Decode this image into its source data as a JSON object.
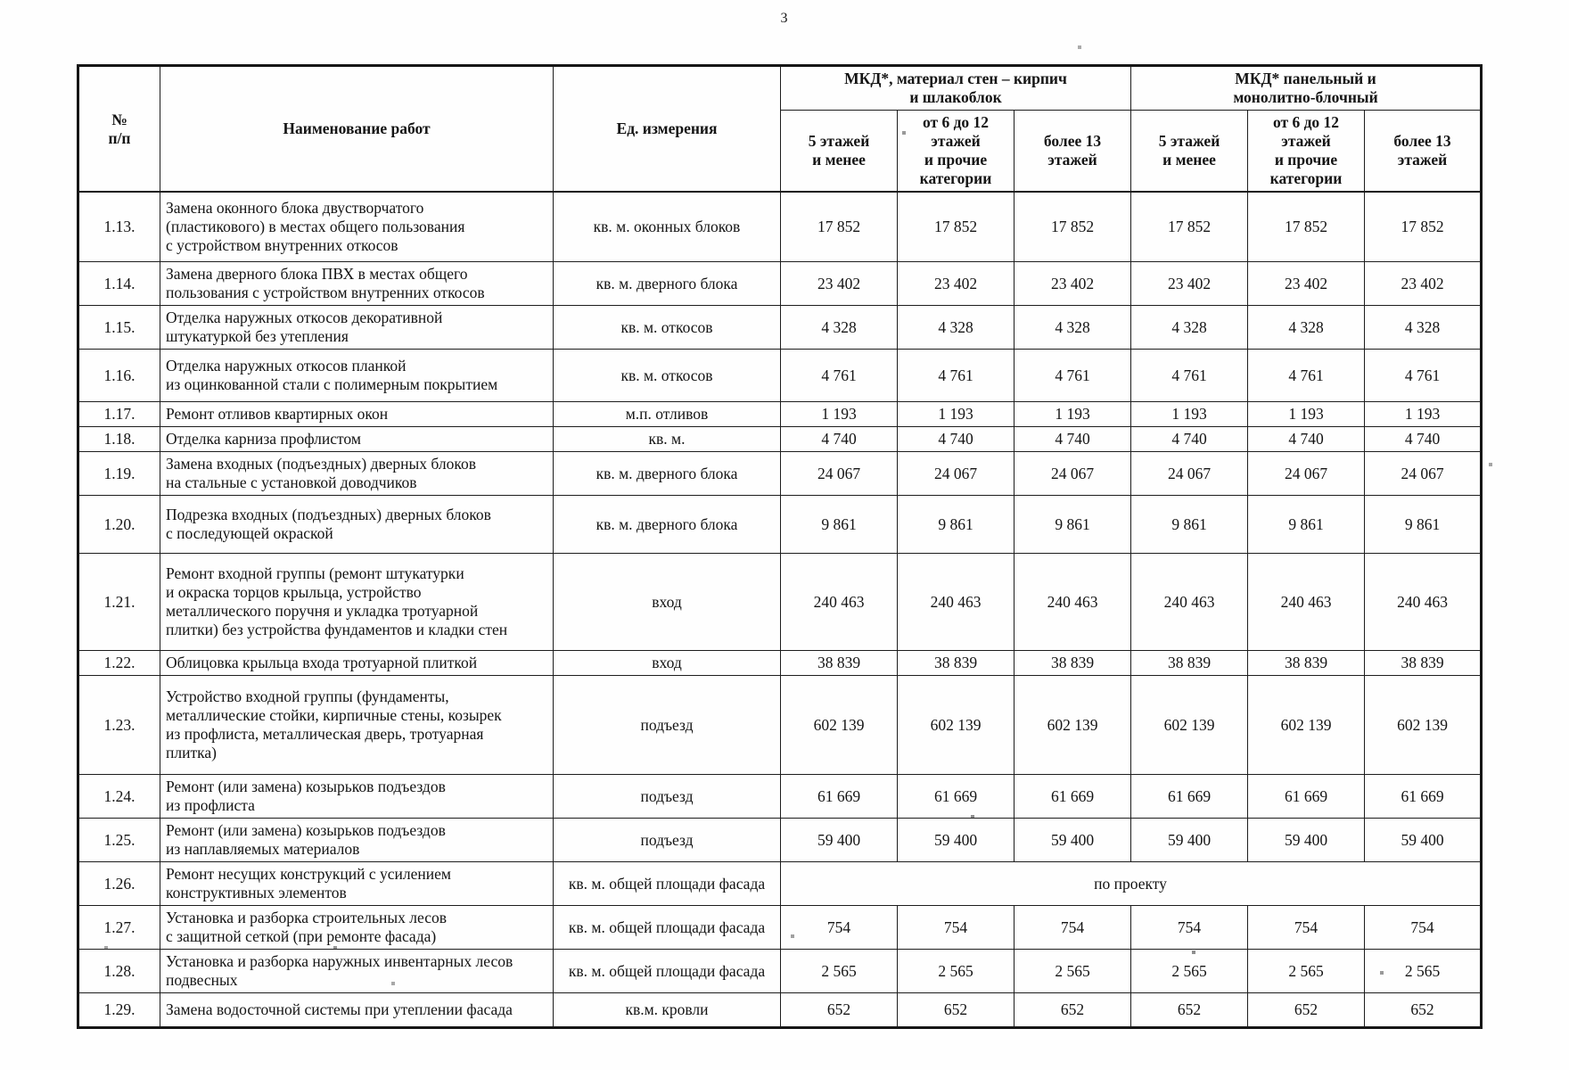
{
  "page_number": "3",
  "table": {
    "headers": {
      "num": "№\nп/п",
      "work_name": "Наименование работ",
      "unit": "Ед. измерения",
      "group_brick": "МКД*, материал стен – кирпич\nи шлакоблок",
      "group_panel": "МКД* панельный и\nмонолитно-блочный",
      "floors": [
        "5 этажей\nи менее",
        "от 6 до 12\nэтажей\nи прочие\nкатегории",
        "более 13\nэтажей",
        "5 этажей\nи менее",
        "от 6 до 12\nэтажей\nи прочие\nкатегории",
        "более 13\nэтажей"
      ]
    },
    "rows": [
      {
        "num": "1.13.",
        "name": "Замена оконного блока двустворчатого\n(пластикового) в местах общего пользования\nс устройством внутренних откосов",
        "unit": "кв. м. оконных блоков",
        "values": [
          "17 852",
          "17 852",
          "17 852",
          "17 852",
          "17 852",
          "17 852"
        ]
      },
      {
        "num": "1.14.",
        "name": "Замена дверного блока ПВХ в местах общего\nпользования с устройством внутренних откосов",
        "unit": "кв. м. дверного блока",
        "values": [
          "23 402",
          "23 402",
          "23 402",
          "23 402",
          "23 402",
          "23 402"
        ]
      },
      {
        "num": "1.15.",
        "name": "Отделка наружных откосов декоративной\nштукатуркой без утепления",
        "unit": "кв. м. откосов",
        "values": [
          "4 328",
          "4 328",
          "4 328",
          "4 328",
          "4 328",
          "4 328"
        ]
      },
      {
        "num": "1.16.",
        "name": "Отделка наружных откосов планкой\nиз оцинкованной стали с полимерным покрытием",
        "unit": "кв. м. откосов",
        "values": [
          "4 761",
          "4 761",
          "4 761",
          "4 761",
          "4 761",
          "4 761"
        ]
      },
      {
        "num": "1.17.",
        "name": "Ремонт отливов квартирных окон",
        "unit": "м.п. отливов",
        "values": [
          "1 193",
          "1 193",
          "1 193",
          "1 193",
          "1 193",
          "1 193"
        ]
      },
      {
        "num": "1.18.",
        "name": "Отделка карниза профлистом",
        "unit": "кв. м.",
        "values": [
          "4 740",
          "4 740",
          "4 740",
          "4 740",
          "4 740",
          "4 740"
        ]
      },
      {
        "num": "1.19.",
        "name": "Замена входных (подъездных) дверных блоков\nна стальные с установкой доводчиков",
        "unit": "кв. м. дверного блока",
        "values": [
          "24 067",
          "24 067",
          "24 067",
          "24 067",
          "24 067",
          "24 067"
        ]
      },
      {
        "num": "1.20.",
        "name": "Подрезка входных (подъездных) дверных блоков\nс последующей окраской",
        "unit": "кв. м. дверного блока",
        "values": [
          "9 861",
          "9 861",
          "9 861",
          "9 861",
          "9 861",
          "9 861"
        ]
      },
      {
        "num": "1.21.",
        "name": "Ремонт входной группы (ремонт штукатурки\nи окраска торцов крыльца, устройство\nметаллического поручня и укладка тротуарной\nплитки) без устройства фундаментов и кладки стен",
        "unit": "вход",
        "values": [
          "240 463",
          "240 463",
          "240 463",
          "240 463",
          "240 463",
          "240 463"
        ]
      },
      {
        "num": "1.22.",
        "name": "Облицовка крыльца входа тротуарной плиткой",
        "unit": "вход",
        "values": [
          "38 839",
          "38 839",
          "38 839",
          "38 839",
          "38 839",
          "38 839"
        ]
      },
      {
        "num": "1.23.",
        "name": "Устройство входной группы (фундаменты,\nметаллические стойки, кирпичные стены, козырек\nиз профлиста, металлическая дверь, тротуарная\nплитка)",
        "unit": "подъезд",
        "values": [
          "602 139",
          "602 139",
          "602 139",
          "602 139",
          "602 139",
          "602 139"
        ]
      },
      {
        "num": "1.24.",
        "name": "Ремонт (или замена) козырьков подъездов\nиз профлиста",
        "unit": "подъезд",
        "values": [
          "61 669",
          "61 669",
          "61 669",
          "61 669",
          "61 669",
          "61 669"
        ]
      },
      {
        "num": "1.25.",
        "name": "Ремонт (или замена) козырьков подъездов\nиз наплавляемых материалов",
        "unit": "подъезд",
        "values": [
          "59 400",
          "59 400",
          "59 400",
          "59 400",
          "59 400",
          "59 400"
        ]
      },
      {
        "num": "1.26.",
        "name": "Ремонт несущих конструкций с усилением\nконструктивных элементов",
        "unit": "кв. м. общей площади фасада",
        "merged_value": "по проекту"
      },
      {
        "num": "1.27.",
        "name": "Установка и разборка строительных лесов\nс защитной сеткой (при ремонте фасада)",
        "unit": "кв. м. общей площади фасада",
        "values": [
          "754",
          "754",
          "754",
          "754",
          "754",
          "754"
        ]
      },
      {
        "num": "1.28.",
        "name": "Установка и разборка наружных инвентарных лесов\nподвесных",
        "unit": "кв. м. общей площади фасада",
        "values": [
          "2 565",
          "2 565",
          "2 565",
          "2 565",
          "2 565",
          "2 565"
        ]
      },
      {
        "num": "1.29.",
        "name": "Замена водосточной системы при утеплении фасада",
        "unit": "кв.м. кровли",
        "values": [
          "652",
          "652",
          "652",
          "652",
          "652",
          "652"
        ]
      }
    ]
  }
}
